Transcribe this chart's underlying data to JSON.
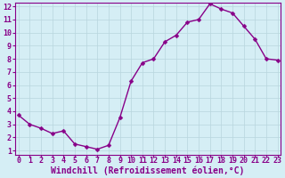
{
  "x": [
    0,
    1,
    2,
    3,
    4,
    5,
    6,
    7,
    8,
    9,
    10,
    11,
    12,
    13,
    14,
    15,
    16,
    17,
    18,
    19,
    20,
    21,
    22,
    23
  ],
  "y": [
    3.7,
    3.0,
    2.7,
    2.3,
    2.5,
    1.5,
    1.3,
    1.1,
    1.4,
    3.5,
    6.3,
    7.7,
    8.0,
    9.3,
    9.8,
    10.8,
    11.0,
    12.2,
    11.8,
    11.5,
    10.5,
    9.5,
    8.0,
    7.9
  ],
  "line_color": "#880088",
  "marker": "D",
  "marker_size": 2.5,
  "bg_color": "#d5eef5",
  "grid_color": "#b8d5de",
  "xlabel": "Windchill (Refroidissement éolien,°C)",
  "ylim_min": 1,
  "ylim_max": 12,
  "xlim_min": 0,
  "xlim_max": 23,
  "yticks": [
    1,
    2,
    3,
    4,
    5,
    6,
    7,
    8,
    9,
    10,
    11,
    12
  ],
  "xticks": [
    0,
    1,
    2,
    3,
    4,
    5,
    6,
    7,
    8,
    9,
    10,
    11,
    12,
    13,
    14,
    15,
    16,
    17,
    18,
    19,
    20,
    21,
    22,
    23
  ],
  "axis_color": "#880088",
  "tick_color": "#880088",
  "font_size": 6,
  "xlabel_font_size": 7,
  "line_width": 1.0,
  "spine_color": "#880088"
}
